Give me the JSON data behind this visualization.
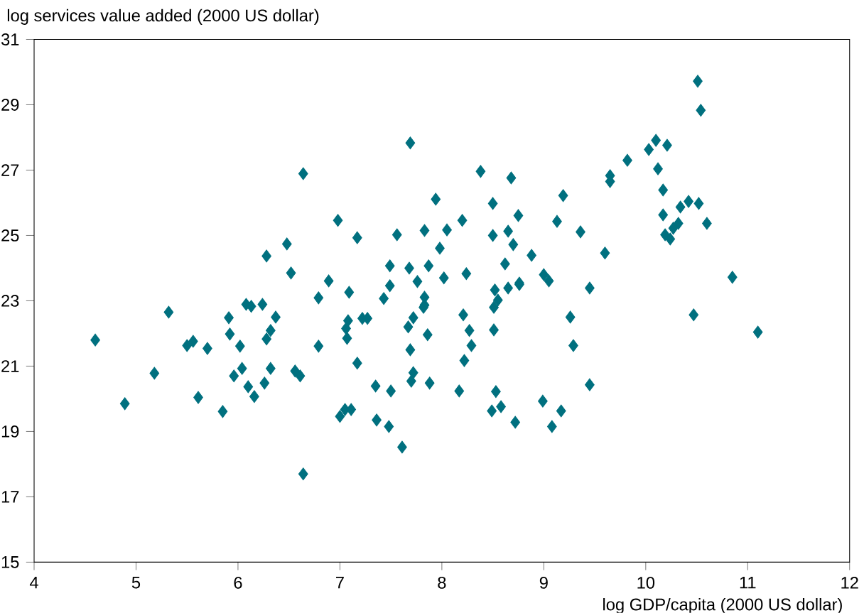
{
  "chart_data": {
    "type": "scatter",
    "xlabel": "log GDP/capita (2000 US dollar)",
    "ylabel": "log services value added (2000 US dollar)",
    "xlim": [
      4,
      12
    ],
    "xticks": [
      4,
      5,
      6,
      7,
      8,
      9,
      10,
      11,
      12
    ],
    "ylim": [
      15,
      31
    ],
    "yticks": [
      15,
      17,
      19,
      21,
      23,
      25,
      27,
      29,
      31
    ],
    "marker": "diamond",
    "grid": false,
    "series": [
      {
        "color": "#00707f",
        "x": [
          4.6,
          4.89,
          5.18,
          5.32,
          5.5,
          5.56,
          5.61,
          5.7,
          5.85,
          5.91,
          5.92,
          5.96,
          6.02,
          6.04,
          6.08,
          6.1,
          6.13,
          6.16,
          6.24,
          6.26,
          6.28,
          6.28,
          6.32,
          6.32,
          6.37,
          6.48,
          6.52,
          6.56,
          6.61,
          6.64,
          6.64,
          6.79,
          6.79,
          6.89,
          6.98,
          7.0,
          7.05,
          7.06,
          7.07,
          7.08,
          7.09,
          7.11,
          7.17,
          7.17,
          7.22,
          7.27,
          7.35,
          7.36,
          7.43,
          7.48,
          7.49,
          7.49,
          7.5,
          7.56,
          7.61,
          7.67,
          7.68,
          7.69,
          7.69,
          7.7,
          7.72,
          7.72,
          7.76,
          7.82,
          7.83,
          7.83,
          7.83,
          7.86,
          7.87,
          7.88,
          7.94,
          7.98,
          8.02,
          8.05,
          8.17,
          8.2,
          8.21,
          8.22,
          8.24,
          8.27,
          8.29,
          8.38,
          8.49,
          8.5,
          8.5,
          8.51,
          8.51,
          8.52,
          8.53,
          8.55,
          8.58,
          8.62,
          8.65,
          8.65,
          8.68,
          8.7,
          8.72,
          8.75,
          8.76,
          8.76,
          8.88,
          8.99,
          9.0,
          9.05,
          9.08,
          9.13,
          9.19,
          9.17,
          9.26,
          9.29,
          9.36,
          9.45,
          9.45,
          9.6,
          9.65,
          9.65,
          9.82,
          10.03,
          10.1,
          10.12,
          10.17,
          10.17,
          10.19,
          10.21,
          10.24,
          10.27,
          10.32,
          10.34,
          10.42,
          10.47,
          10.51,
          10.52,
          10.54,
          10.6,
          10.85,
          11.1
        ],
        "values": [
          21.8,
          19.85,
          20.78,
          22.65,
          21.63,
          21.76,
          20.04,
          21.54,
          19.61,
          22.48,
          21.98,
          20.7,
          21.61,
          20.93,
          22.89,
          20.37,
          22.83,
          20.07,
          22.89,
          20.48,
          24.37,
          21.83,
          22.09,
          20.93,
          22.5,
          24.74,
          23.85,
          20.85,
          20.7,
          17.7,
          26.89,
          23.09,
          21.61,
          23.61,
          25.46,
          19.46,
          19.67,
          22.15,
          21.85,
          22.39,
          23.26,
          19.67,
          24.93,
          21.09,
          22.46,
          22.46,
          20.39,
          19.35,
          23.07,
          19.15,
          23.46,
          24.07,
          20.24,
          25.02,
          18.52,
          22.2,
          24.0,
          21.5,
          27.83,
          20.54,
          22.48,
          20.8,
          23.59,
          22.8,
          25.15,
          22.87,
          23.11,
          21.96,
          24.07,
          20.48,
          26.11,
          24.61,
          23.7,
          25.17,
          20.24,
          25.46,
          22.57,
          21.17,
          23.83,
          22.09,
          21.63,
          26.96,
          19.63,
          25.98,
          25.0,
          22.8,
          22.11,
          23.33,
          20.22,
          23.02,
          19.76,
          24.13,
          25.13,
          23.39,
          26.76,
          24.72,
          19.28,
          25.61,
          23.5,
          23.54,
          24.39,
          19.93,
          23.8,
          23.61,
          19.15,
          25.43,
          26.22,
          19.63,
          22.5,
          21.63,
          25.11,
          23.39,
          20.43,
          24.46,
          26.83,
          26.65,
          27.3,
          27.63,
          27.91,
          27.04,
          26.39,
          25.63,
          25.02,
          27.76,
          24.89,
          25.22,
          25.37,
          25.87,
          26.04,
          22.57,
          29.72,
          25.98,
          28.83,
          25.37,
          23.72,
          22.04
        ]
      }
    ]
  }
}
